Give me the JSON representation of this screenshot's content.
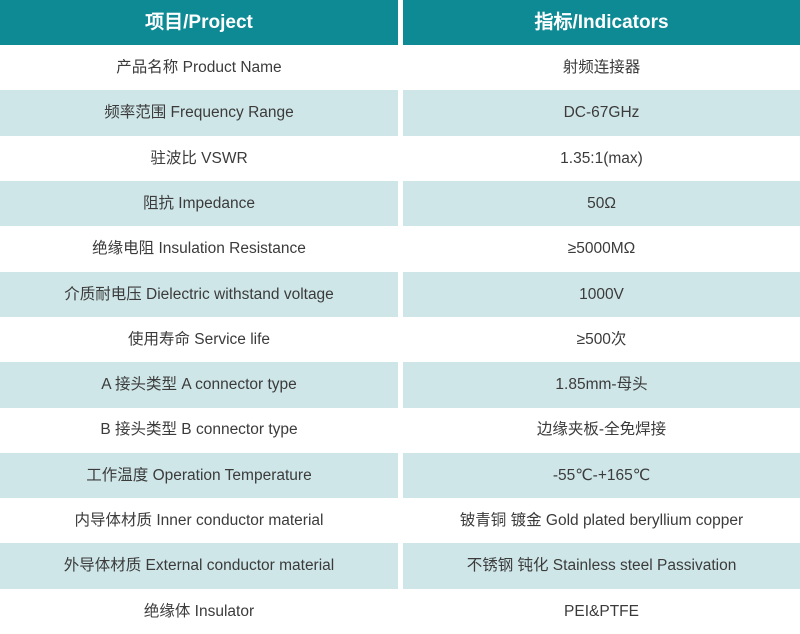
{
  "colors": {
    "header_bg": "#0e8a95",
    "header_text": "#ffffff",
    "row_bg": "#ffffff",
    "row_alt_bg": "#cfe6e8",
    "divider": "#ffffff",
    "body_text": "#3b3b3b"
  },
  "table": {
    "header": {
      "col1": "项目/Project",
      "col2": "指标/Indicators"
    },
    "rows": [
      {
        "project": "产品名称 Product Name",
        "indicator": "射频连接器"
      },
      {
        "project": "频率范围 Frequency Range",
        "indicator": "DC-67GHz"
      },
      {
        "project": "驻波比 VSWR",
        "indicator": "1.35:1(max)"
      },
      {
        "project": "阻抗 Impedance",
        "indicator": "50Ω"
      },
      {
        "project": "绝缘电阻 Insulation Resistance",
        "indicator": "≥5000MΩ"
      },
      {
        "project": "介质耐电压 Dielectric withstand voltage",
        "indicator": "1000V"
      },
      {
        "project": "使用寿命 Service life",
        "indicator": "≥500次"
      },
      {
        "project": "A 接头类型 A connector type",
        "indicator": "1.85mm-母头"
      },
      {
        "project": "B 接头类型 B connector type",
        "indicator": "边缘夹板-全免焊接"
      },
      {
        "project": "工作温度 Operation Temperature",
        "indicator": "-55℃-+165℃"
      },
      {
        "project": "内导体材质 Inner conductor material",
        "indicator": "铍青铜 镀金 Gold plated beryllium copper"
      },
      {
        "project": "外导体材质 External conductor material",
        "indicator": "不锈钢 钝化 Stainless steel Passivation"
      },
      {
        "project": "绝缘体 Insulator",
        "indicator": "PEI&PTFE"
      }
    ]
  }
}
